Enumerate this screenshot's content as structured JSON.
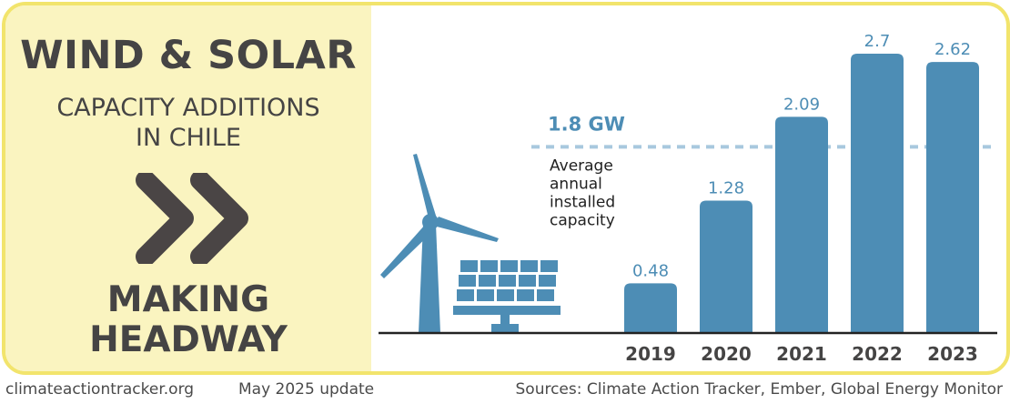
{
  "header": {
    "title": "WIND & SOLAR",
    "subtitle_line1": "CAPACITY ADDITIONS",
    "subtitle_line2": "IN CHILE",
    "status_line1": "MAKING",
    "status_line2": "HEADWAY",
    "status_icon": "double-chevron-right-icon"
  },
  "colors": {
    "bar": "#4d8db5",
    "label": "#4d8db5",
    "panel": "#faf4c0",
    "border": "#f2e46c",
    "text": "#454444",
    "avg_line": "#a8c8de"
  },
  "chart_data": {
    "type": "bar",
    "title": "Wind & Solar capacity additions in Chile",
    "categories": [
      "2019",
      "2020",
      "2021",
      "2022",
      "2023"
    ],
    "values": [
      0.48,
      1.28,
      2.09,
      2.7,
      2.62
    ],
    "value_labels": [
      "0.48",
      "1.28",
      "2.09",
      "2.7",
      "2.62"
    ],
    "unit": "GW",
    "ylim": [
      0,
      2.7
    ],
    "grid": false,
    "reference_line": {
      "value": 1.8,
      "label": "1.8 GW",
      "description_lines": [
        "Average",
        "annual",
        "installed",
        "capacity"
      ]
    },
    "illustrations": [
      "wind-turbine-icon",
      "solar-panel-icon"
    ]
  },
  "footer": {
    "website": "climateactiontracker.org",
    "update": "May 2025 update",
    "sources": "Sources: Climate Action Tracker, Ember, Global Energy Monitor"
  }
}
